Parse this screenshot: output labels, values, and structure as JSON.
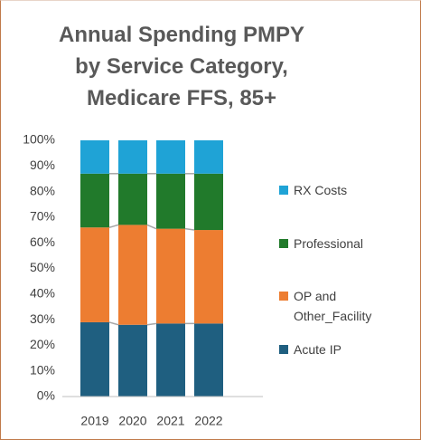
{
  "chart_data": {
    "type": "stacked_bar",
    "title": "Annual Spending PMPY by Service Category, Medicare FFS, 85+",
    "categories": [
      "2019",
      "2020",
      "2021",
      "2022"
    ],
    "series": [
      {
        "name": "Acute IP",
        "color": "#1f5f80",
        "values": [
          29,
          28,
          28.5,
          28.5
        ]
      },
      {
        "name": "OP and Other_Facility",
        "color": "#ed7d31",
        "values": [
          37,
          39,
          37,
          36.5
        ]
      },
      {
        "name": "Professional",
        "color": "#217a2b",
        "values": [
          21,
          20,
          21.5,
          22
        ]
      },
      {
        "name": "RX Costs",
        "color": "#1fa3d6",
        "values": [
          13,
          13,
          13,
          13
        ]
      }
    ],
    "ylim": [
      0,
      100
    ],
    "yticks": [
      {
        "value": 0,
        "label": "0%"
      },
      {
        "value": 10,
        "label": "10%"
      },
      {
        "value": 20,
        "label": "20%"
      },
      {
        "value": 30,
        "label": "30%"
      },
      {
        "value": 40,
        "label": "40%"
      },
      {
        "value": 50,
        "label": "50%"
      },
      {
        "value": 60,
        "label": "60%"
      },
      {
        "value": 70,
        "label": "70%"
      },
      {
        "value": 80,
        "label": "80%"
      },
      {
        "value": 90,
        "label": "90%"
      },
      {
        "value": 100,
        "label": "100%"
      }
    ],
    "grid": false,
    "legend": "right"
  }
}
